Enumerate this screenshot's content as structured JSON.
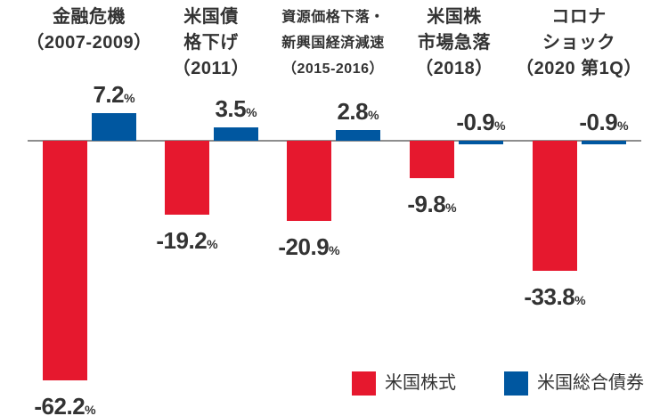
{
  "chart_data": {
    "type": "bar",
    "title": "",
    "unit": "%",
    "grid": false,
    "axis": {
      "zero_line": true,
      "ylim": [
        -70,
        15
      ]
    },
    "colors": {
      "stock": "#e6182e",
      "bond": "#0057a0",
      "axis": "#8e8e8e",
      "text": "#333333"
    },
    "series": [
      {
        "name": "米国株式",
        "values": [
          -62.2,
          -19.2,
          -20.9,
          -9.8,
          -33.8
        ]
      },
      {
        "name": "米国総合債券",
        "values": [
          7.2,
          3.5,
          2.8,
          -0.9,
          -0.9
        ]
      }
    ],
    "legend": [
      {
        "label": "米国株式",
        "color": "#e6182e"
      },
      {
        "label": "米国総合債券",
        "color": "#0057a0"
      }
    ],
    "groups": [
      {
        "title_lines": [
          "金融危機",
          "（2007-2009）"
        ],
        "stock_value": -62.2,
        "bond_value": 7.2,
        "stock_display": "-62.2",
        "bond_display": "7.2"
      },
      {
        "title_lines": [
          "米国債",
          "格下げ",
          "（2011）"
        ],
        "stock_value": -19.2,
        "bond_value": 3.5,
        "stock_display": "-19.2",
        "bond_display": "3.5"
      },
      {
        "title_lines": [
          "資源価格下落・",
          "新興国経済減速",
          "（2015-2016）"
        ],
        "stock_value": -20.9,
        "bond_value": 2.8,
        "stock_display": "-20.9",
        "bond_display": "2.8"
      },
      {
        "title_lines": [
          "米国株",
          "市場急落",
          "（2018）"
        ],
        "stock_value": -9.8,
        "bond_value": -0.9,
        "stock_display": "-9.8",
        "bond_display": "-0.9"
      },
      {
        "title_lines": [
          "コロナ",
          "ショック",
          "（2020 第1Q）"
        ],
        "stock_value": -33.8,
        "bond_value": -0.9,
        "stock_display": "-33.8",
        "bond_display": "-0.9"
      }
    ]
  }
}
